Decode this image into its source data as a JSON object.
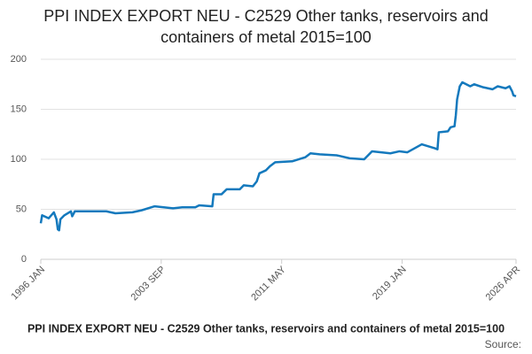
{
  "chart_data": {
    "type": "line",
    "title": "PPI INDEX EXPORT NEU - C2529 Other tanks, reservoirs and containers of metal 2015=100",
    "source": "Source:",
    "x": [
      "1996 JAN",
      "1996 FEB",
      "1996 JUL",
      "1996 NOV",
      "1997 JAN",
      "1997 FEB",
      "1997 MAR",
      "1997 APR",
      "1997 JUL",
      "1997 DEC",
      "1998 JAN",
      "1998 MAR",
      "2000 MAR",
      "2000 OCT",
      "2001 NOV",
      "2002 JUN",
      "2003 APR",
      "2004 JUN",
      "2005 JAN",
      "2005 NOV",
      "2006 FEB",
      "2006 DEC",
      "2007 JAN",
      "2007 JUL",
      "2007 NOV",
      "2008 SEP",
      "2008 DEC",
      "2009 JUL",
      "2009 OCT",
      "2009 DEC",
      "2010 MAY",
      "2010 AUG",
      "2010 DEC",
      "2012 JAN",
      "2012 NOV",
      "2013 MAR",
      "2013 OCT",
      "2014 NOV",
      "2015 SEP",
      "2016 AUG",
      "2016 NOV",
      "2017 FEB",
      "2018 APR",
      "2018 NOV",
      "2019 MAY",
      "2020 APR",
      "2021 FEB",
      "2021 APR",
      "2021 MAY",
      "2021 DEC",
      "2022 FEB",
      "2022 MAY",
      "2022 JUN",
      "2022 JUL",
      "2022 SEP",
      "2022 NOV",
      "2023 FEB",
      "2023 MAY",
      "2023 AUG",
      "2024 MAR",
      "2024 OCT",
      "2025 FEB",
      "2025 AUG",
      "2025 NOV",
      "2026 JAN",
      "2026 FEB",
      "2026 APR"
    ],
    "series": [
      {
        "name": "PPI INDEX EXPORT NEU - C2529 Other tanks, reservoirs and containers of metal 2015=100",
        "color": "#1479bd",
        "values": [
          36,
          44,
          41,
          47,
          40,
          30,
          29,
          40,
          44,
          48,
          43,
          48,
          48,
          46,
          47,
          49,
          53,
          51,
          52,
          52,
          54,
          53,
          65,
          65,
          70,
          70,
          74,
          73,
          78,
          86,
          89,
          93,
          97,
          98,
          102,
          106,
          105,
          104,
          101,
          100,
          104,
          108,
          106,
          108,
          107,
          115,
          111,
          110,
          127,
          128,
          132,
          133,
          144,
          160,
          173,
          177,
          175,
          173,
          175,
          172,
          170,
          173,
          171,
          173,
          168,
          164,
          163
        ]
      }
    ],
    "xlim": [
      "1996 JAN",
      "2026 APR"
    ],
    "xticks": [
      "1996 JAN",
      "2003 SEP",
      "2011 MAY",
      "2019 JAN",
      "2026 APR"
    ],
    "ylim": [
      0,
      200
    ],
    "yticks": [
      0,
      50,
      100,
      150,
      200
    ],
    "grid": true
  }
}
